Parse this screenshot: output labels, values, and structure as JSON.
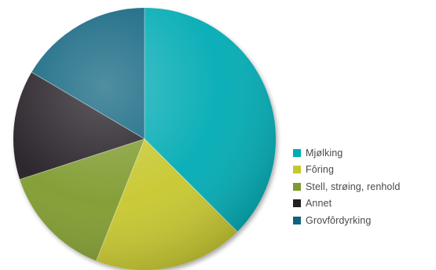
{
  "chart_data": {
    "type": "pie",
    "title": "",
    "start_angle_deg": 0,
    "direction": "clockwise",
    "legend_position": "right",
    "slices": [
      {
        "label": "Mjølking",
        "value": 37.5,
        "color": "#00abb4"
      },
      {
        "label": "Fôring",
        "value": 18.5,
        "color": "#c7c72d"
      },
      {
        "label": "Stell, strøing, renhold",
        "value": 14.0,
        "color": "#7f9b2f"
      },
      {
        "label": "Annet",
        "value": 13.5,
        "color": "#231f20"
      },
      {
        "label": "Grovfôrdyrking",
        "value": 16.5,
        "color": "#0f627d"
      }
    ]
  }
}
